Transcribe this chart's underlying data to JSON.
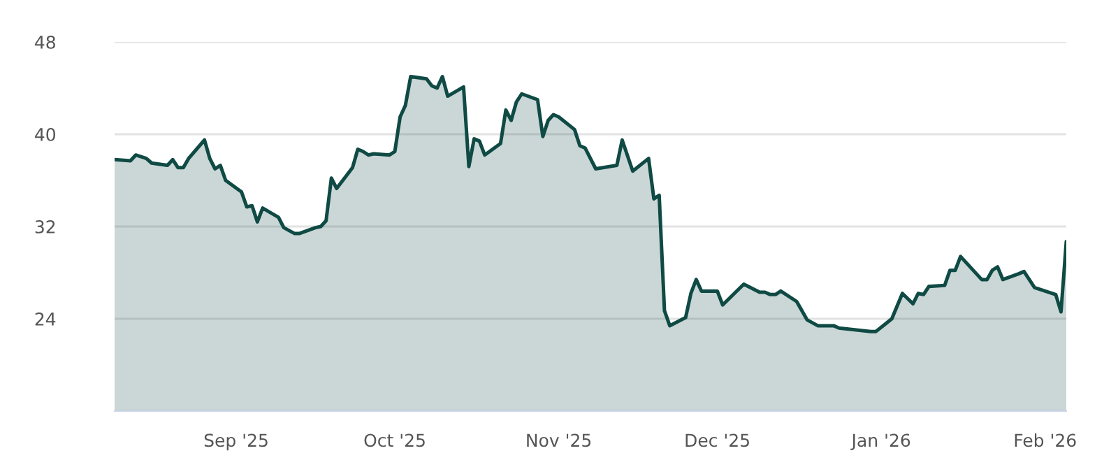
{
  "chart_data": {
    "type": "area",
    "x": [
      "2025-08-09",
      "2025-08-12",
      "2025-08-13",
      "2025-08-15",
      "2025-08-16",
      "2025-08-19",
      "2025-08-20",
      "2025-08-21",
      "2025-08-22",
      "2025-08-23",
      "2025-08-26",
      "2025-08-27",
      "2025-08-28",
      "2025-08-29",
      "2025-08-30",
      "2025-09-02",
      "2025-09-03",
      "2025-09-04",
      "2025-09-05",
      "2025-09-06",
      "2025-09-09",
      "2025-09-10",
      "2025-09-12",
      "2025-09-13",
      "2025-09-16",
      "2025-09-17",
      "2025-09-18",
      "2025-09-19",
      "2025-09-20",
      "2025-09-23",
      "2025-09-24",
      "2025-09-25",
      "2025-09-26",
      "2025-09-27",
      "2025-09-30",
      "2025-10-01",
      "2025-10-02",
      "2025-10-03",
      "2025-10-04",
      "2025-10-07",
      "2025-10-08",
      "2025-10-09",
      "2025-10-10",
      "2025-10-11",
      "2025-10-14",
      "2025-10-15",
      "2025-10-16",
      "2025-10-17",
      "2025-10-18",
      "2025-10-21",
      "2025-10-22",
      "2025-10-23",
      "2025-10-24",
      "2025-10-25",
      "2025-10-28",
      "2025-10-29",
      "2025-10-30",
      "2025-10-31",
      "2025-11-01",
      "2025-11-04",
      "2025-11-05",
      "2025-11-06",
      "2025-11-08",
      "2025-11-12",
      "2025-11-13",
      "2025-11-15",
      "2025-11-18",
      "2025-11-19",
      "2025-11-20",
      "2025-11-21",
      "2025-11-22",
      "2025-11-25",
      "2025-11-26",
      "2025-11-27",
      "2025-11-28",
      "2025-12-01",
      "2025-12-02",
      "2025-12-06",
      "2025-12-09",
      "2025-12-10",
      "2025-12-11",
      "2025-12-12",
      "2025-12-13",
      "2025-12-16",
      "2025-12-17",
      "2025-12-18",
      "2025-12-20",
      "2025-12-23",
      "2025-12-24",
      "2025-12-30",
      "2025-12-31",
      "2026-01-03",
      "2026-01-05",
      "2026-01-07",
      "2026-01-08",
      "2026-01-09",
      "2026-01-10",
      "2026-01-13",
      "2026-01-14",
      "2026-01-15",
      "2026-01-16",
      "2026-01-20",
      "2026-01-21",
      "2026-01-22",
      "2026-01-23",
      "2026-01-24",
      "2026-01-27",
      "2026-01-28",
      "2026-01-30",
      "2026-02-03",
      "2026-02-04",
      "2026-02-05"
    ],
    "series": [
      {
        "color": "#0f4a44",
        "values": [
          37.8,
          37.7,
          38.2,
          37.9,
          37.5,
          37.3,
          37.8,
          37.1,
          37.1,
          37.9,
          39.5,
          37.9,
          37.0,
          37.3,
          36.0,
          35.0,
          33.7,
          33.8,
          32.4,
          33.6,
          32.8,
          31.9,
          31.4,
          31.4,
          31.9,
          32.0,
          32.5,
          36.2,
          35.3,
          37.1,
          38.7,
          38.5,
          38.2,
          38.3,
          38.2,
          38.5,
          41.5,
          42.5,
          45.0,
          44.8,
          44.2,
          44.0,
          45.0,
          43.3,
          44.1,
          37.2,
          39.6,
          39.4,
          38.2,
          39.2,
          42.1,
          41.2,
          42.8,
          43.5,
          43.0,
          39.8,
          41.2,
          41.7,
          41.5,
          40.4,
          39.0,
          38.8,
          37.0,
          37.3,
          39.5,
          36.8,
          37.9,
          34.4,
          34.7,
          24.7,
          23.4,
          24.1,
          26.2,
          27.4,
          26.4,
          26.4,
          25.2,
          27.0,
          26.3,
          26.3,
          26.1,
          26.1,
          26.4,
          25.5,
          24.7,
          23.9,
          23.4,
          23.4,
          23.2,
          22.9,
          22.9,
          24.0,
          26.2,
          25.3,
          26.2,
          26.1,
          26.8,
          26.9,
          28.2,
          28.2,
          29.4,
          27.4,
          27.4,
          28.2,
          28.5,
          27.4,
          27.9,
          28.1,
          26.7,
          26.1,
          24.6,
          30.7
        ]
      }
    ],
    "xlim": [
      "2025-08-09",
      "2026-02-05"
    ],
    "xticks": [
      {
        "value": "2025-09-01",
        "label": "Sep '25"
      },
      {
        "value": "2025-10-01",
        "label": "Oct '25"
      },
      {
        "value": "2025-11-01",
        "label": "Nov '25"
      },
      {
        "value": "2025-12-01",
        "label": "Dec '25"
      },
      {
        "value": "2026-01-01",
        "label": "Jan '26"
      },
      {
        "value": "2026-02-01",
        "label": "Feb '26"
      }
    ],
    "ylim": [
      16,
      48
    ],
    "yticks": [
      {
        "value": 16,
        "label": null
      },
      24,
      32,
      40,
      48
    ],
    "grid": "y"
  }
}
